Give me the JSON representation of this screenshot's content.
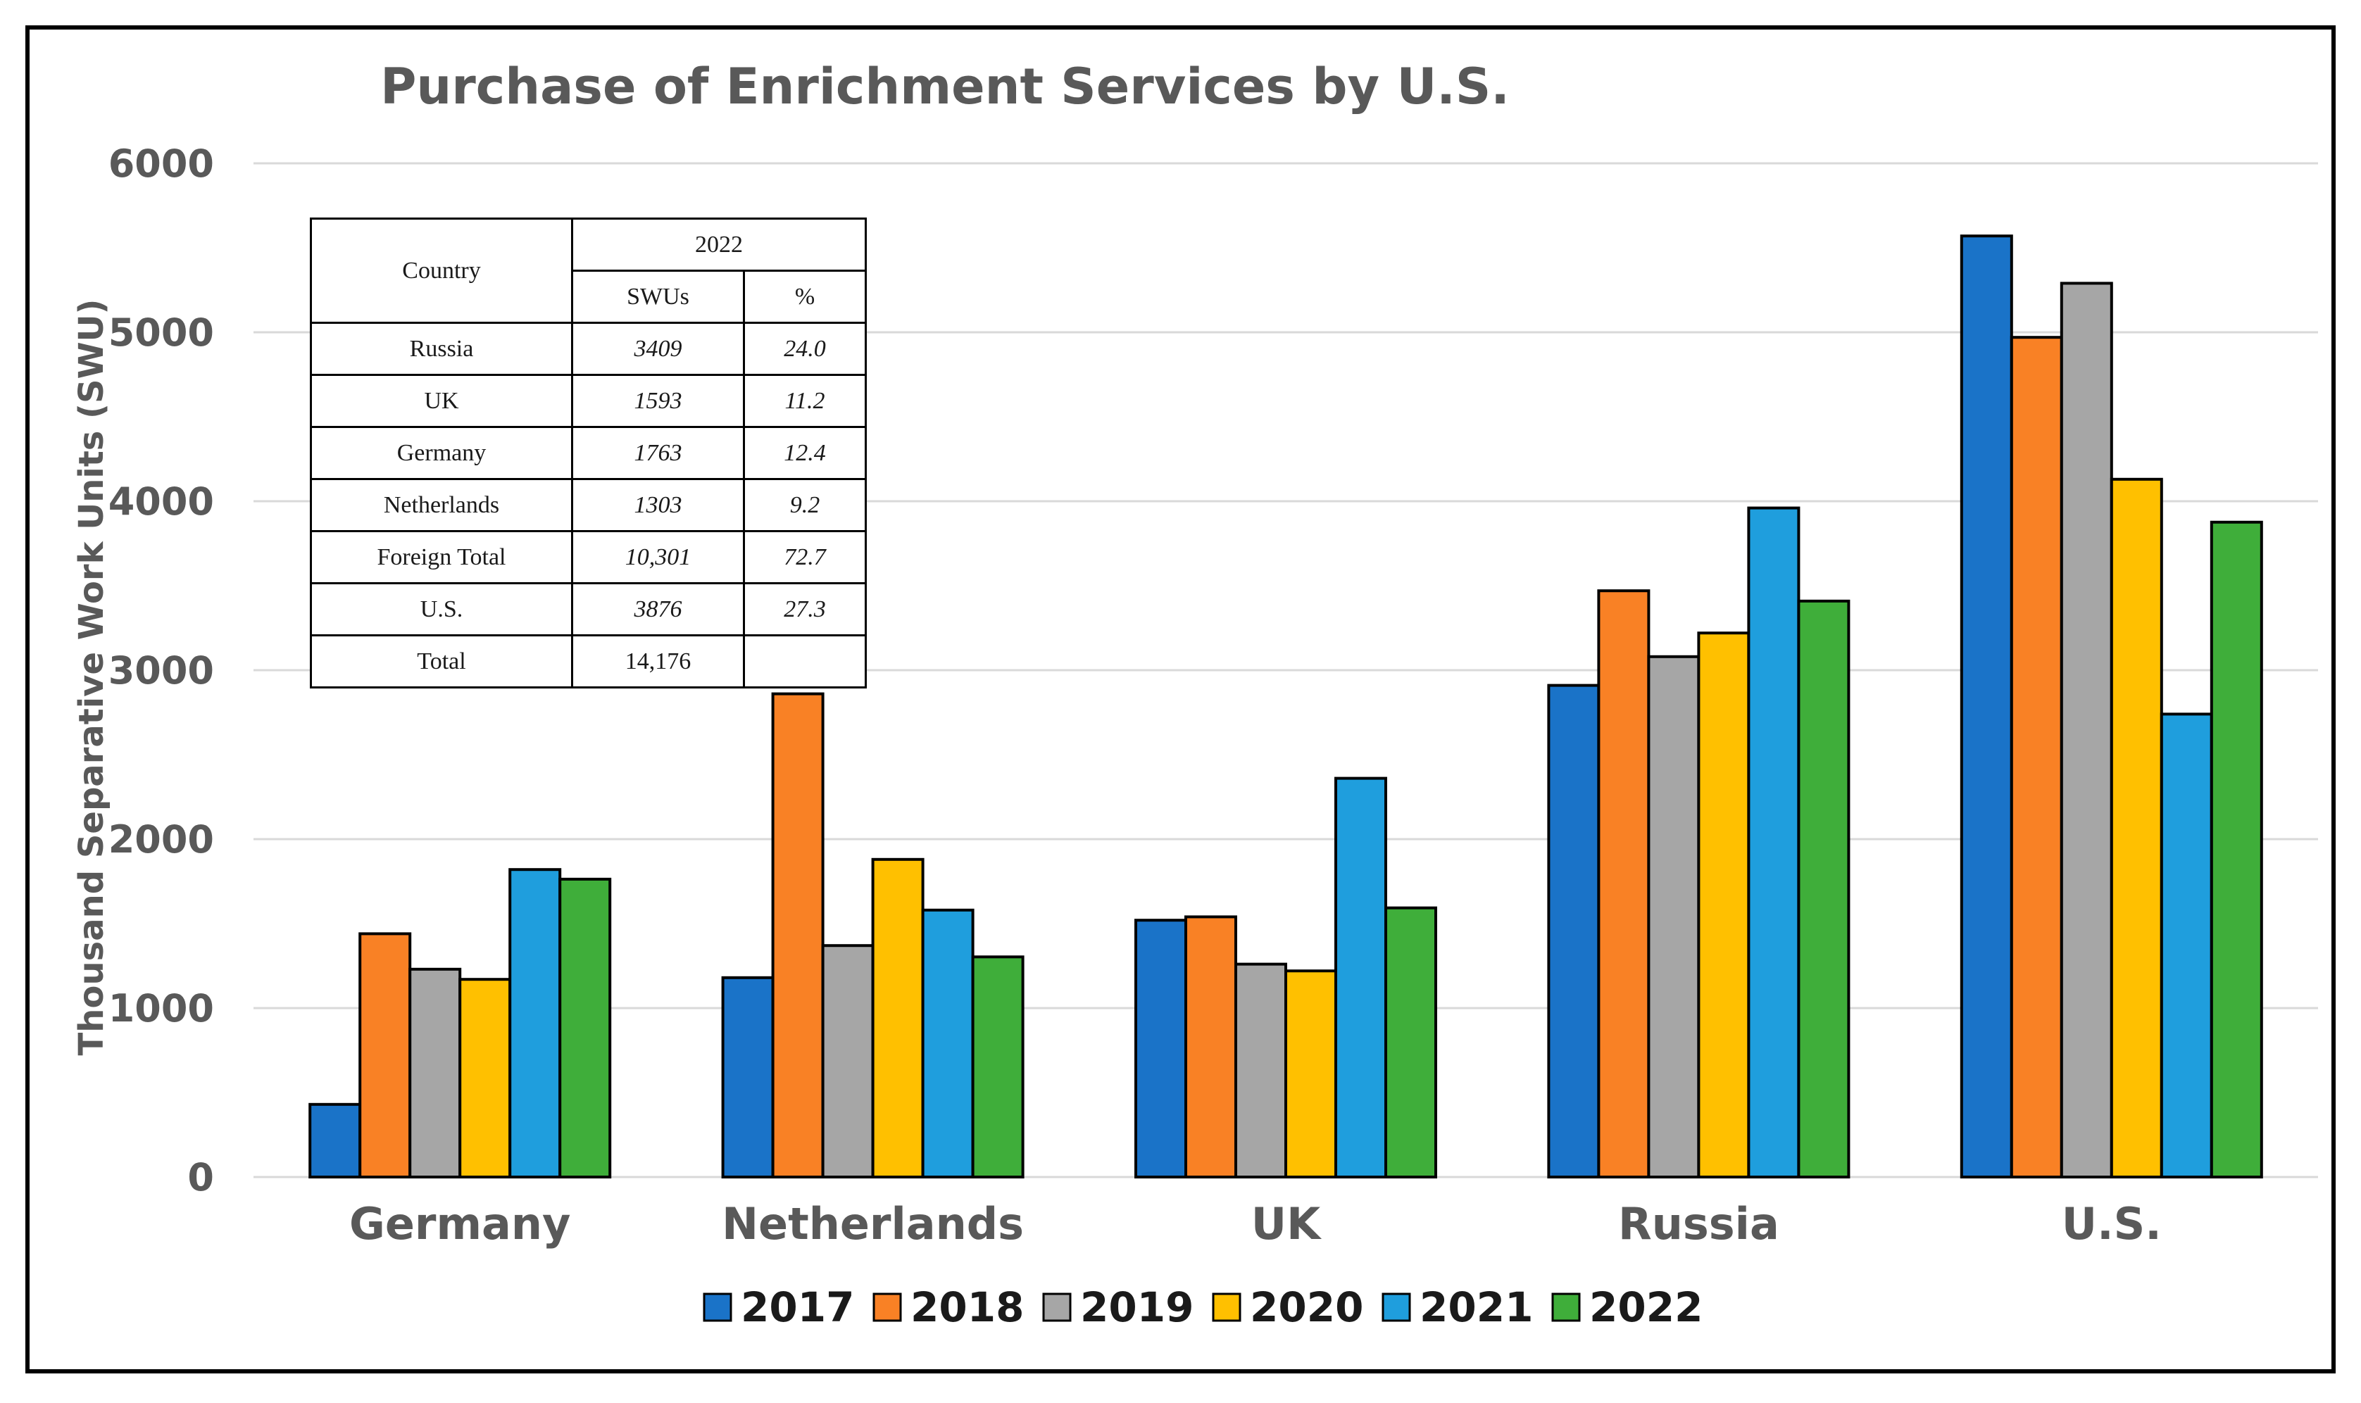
{
  "chart_data": {
    "type": "bar",
    "title": "Purchase of Enrichment Services by U.S.",
    "xlabel": "",
    "ylabel": "Thousand Separative Work Units (SWU)",
    "ylim": [
      0,
      6000
    ],
    "yticks": [
      0,
      1000,
      2000,
      3000,
      4000,
      5000,
      6000
    ],
    "grid": true,
    "legend_position": "bottom",
    "categories": [
      "Germany",
      "Netherlands",
      "UK",
      "Russia",
      "U.S."
    ],
    "series": [
      {
        "name": "2017",
        "color": "#1a73c8",
        "values": [
          430,
          1180,
          1520,
          2910,
          5570
        ]
      },
      {
        "name": "2018",
        "color": "#f98125",
        "values": [
          1440,
          2860,
          1540,
          3470,
          4970
        ]
      },
      {
        "name": "2019",
        "color": "#a6a6a6",
        "values": [
          1230,
          1370,
          1260,
          3080,
          5290
        ]
      },
      {
        "name": "2020",
        "color": "#ffc000",
        "values": [
          1170,
          1880,
          1220,
          3220,
          4130
        ]
      },
      {
        "name": "2021",
        "color": "#1f9edd",
        "values": [
          1820,
          1580,
          2360,
          3960,
          2740
        ]
      },
      {
        "name": "2022",
        "color": "#3fae3a",
        "values": [
          1763,
          1303,
          1593,
          3409,
          3876
        ]
      }
    ]
  },
  "inset_table": {
    "header_country": "Country",
    "header_year": "2022",
    "header_swu": "SWUs",
    "header_pct": "%",
    "rows": [
      {
        "country": "Russia",
        "swu": "3409",
        "pct": "24.0"
      },
      {
        "country": "UK",
        "swu": "1593",
        "pct": "11.2"
      },
      {
        "country": "Germany",
        "swu": "1763",
        "pct": "12.4"
      },
      {
        "country": "Netherlands",
        "swu": "1303",
        "pct": "9.2"
      },
      {
        "country": "Foreign Total",
        "swu": "10,301",
        "pct": "72.7"
      },
      {
        "country": "U.S.",
        "swu": "3876",
        "pct": "27.3"
      },
      {
        "country": "Total",
        "swu": "14,176",
        "pct": ""
      }
    ]
  }
}
